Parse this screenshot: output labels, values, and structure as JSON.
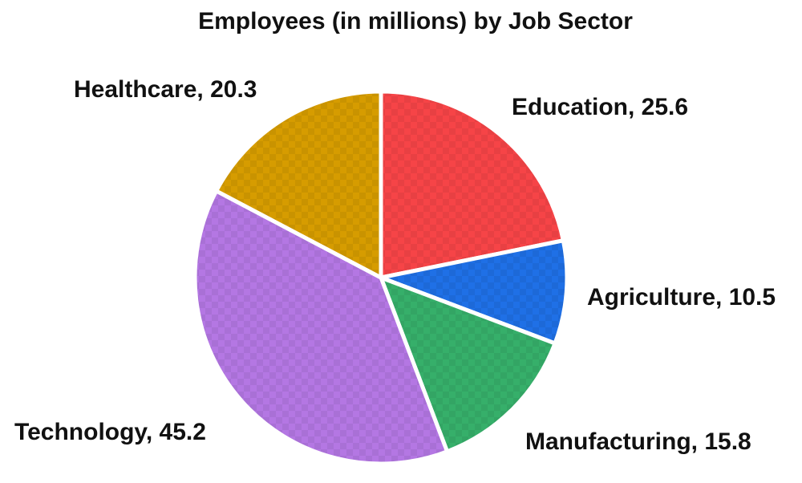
{
  "chart_data": {
    "type": "pie",
    "title": "Employees (in millions) by Job Sector",
    "slices": [
      {
        "label": "Education",
        "value": 25.6,
        "display": "Education, 25.6",
        "color": "#f64447"
      },
      {
        "label": "Agriculture",
        "value": 10.5,
        "display": "Agriculture, 10.5",
        "color": "#1f70e6"
      },
      {
        "label": "Manufacturing",
        "value": 15.8,
        "display": "Manufacturing, 15.8",
        "color": "#36af6a"
      },
      {
        "label": "Technology",
        "value": 45.2,
        "display": "Technology, 45.2",
        "color": "#b477e3"
      },
      {
        "label": "Healthcare",
        "value": 20.3,
        "display": "Healthcare, 20.3",
        "color": "#d69c00"
      }
    ],
    "start_angle": "12 o'clock",
    "direction": "clockwise",
    "slice_pattern": "checkered",
    "legend": "none",
    "labels": "outside slices"
  }
}
